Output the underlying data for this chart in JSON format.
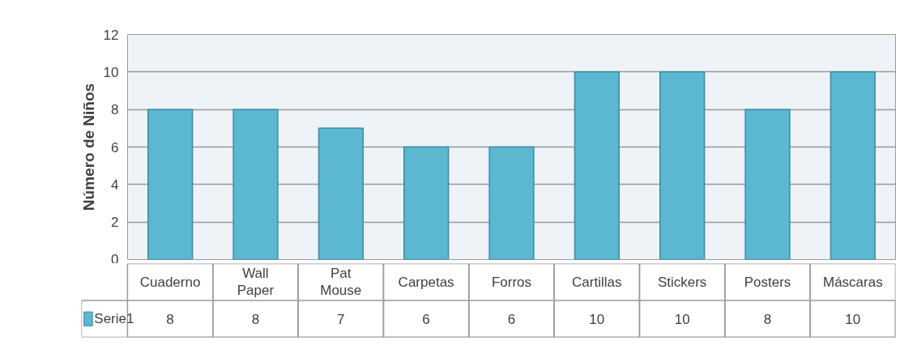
{
  "chart_data": {
    "type": "bar",
    "ylabel": "Número de Niños",
    "categories": [
      "Cuaderno",
      "Wall Paper",
      "Pat Mouse",
      "Carpetas",
      "Forros",
      "Cartillas",
      "Stickers",
      "Posters",
      "Máscaras"
    ],
    "series": [
      {
        "name": "Serie1",
        "color": "#5bb8d0",
        "values": [
          8,
          8,
          7,
          6,
          6,
          10,
          10,
          8,
          10
        ]
      }
    ],
    "ylim": [
      0,
      12
    ],
    "yticks": [
      0,
      2,
      4,
      6,
      8,
      10,
      12
    ],
    "grid": "y",
    "data_labels": true,
    "legend": "bottom left"
  }
}
